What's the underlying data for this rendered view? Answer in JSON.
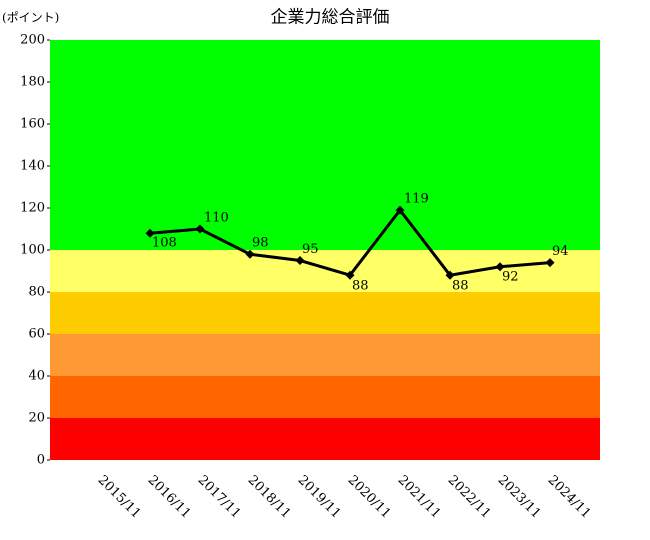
{
  "chart_data": {
    "type": "line",
    "title": "企業力総合評価",
    "y_label": "(ポイント)",
    "categories": [
      "2015/11",
      "2016/11",
      "2017/11",
      "2018/11",
      "2019/11",
      "2020/11",
      "2021/11",
      "2022/11",
      "2023/11",
      "2024/11"
    ],
    "values": [
      null,
      108,
      110,
      98,
      95,
      88,
      119,
      88,
      92,
      94
    ],
    "color": "#000000",
    "ylim": [
      0,
      200
    ],
    "yticks": [
      0,
      20,
      40,
      60,
      80,
      100,
      120,
      140,
      160,
      180,
      200
    ],
    "bands": [
      {
        "from": 0,
        "to": 20,
        "color": "#ff0000"
      },
      {
        "from": 20,
        "to": 40,
        "color": "#ff6600"
      },
      {
        "from": 40,
        "to": 60,
        "color": "#ff9933"
      },
      {
        "from": 60,
        "to": 80,
        "color": "#ffcc00"
      },
      {
        "from": 80,
        "to": 100,
        "color": "#ffff66"
      },
      {
        "from": 100,
        "to": 200,
        "color": "#00ff00"
      }
    ]
  }
}
